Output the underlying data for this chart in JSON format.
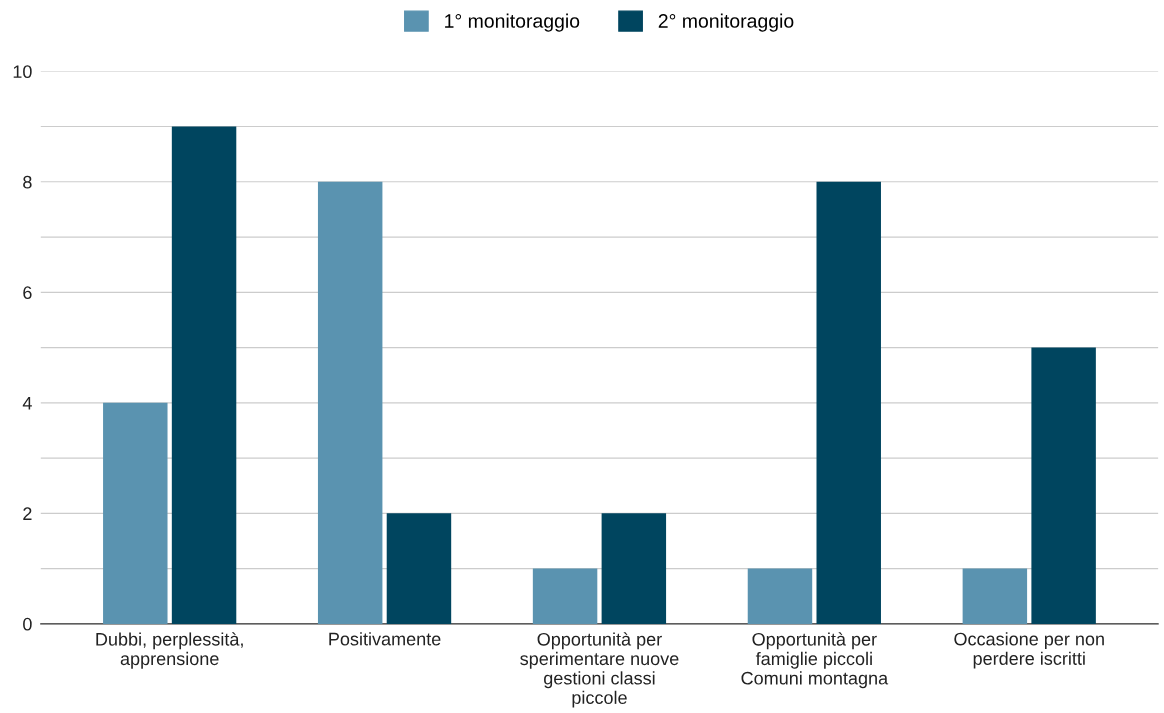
{
  "chart_data": {
    "type": "bar",
    "categories": [
      "Dubbi, perplessità, apprensione",
      "Positivamente",
      "Opportunità per sperimentare nuove gestioni classi piccole",
      "Opportunità per famiglie piccoli Comuni montagna",
      "Occasione per non perdere iscritti"
    ],
    "series": [
      {
        "name": "1° monitoraggio",
        "color": "#5a93b0",
        "values": [
          4,
          8,
          1,
          1,
          1
        ]
      },
      {
        "name": "2° monitoraggio",
        "color": "#00455f",
        "values": [
          9,
          2,
          2,
          8,
          5
        ]
      }
    ],
    "ylim": [
      0,
      10
    ],
    "yticks": [
      0,
      {
        "value": 1,
        "label": null
      },
      2,
      {
        "value": 3,
        "label": null
      },
      4,
      {
        "value": 5,
        "label": null
      },
      6,
      {
        "value": 7,
        "label": null
      },
      8,
      {
        "value": 9,
        "label": null
      },
      10
    ],
    "grid": "y",
    "legend": "top"
  }
}
